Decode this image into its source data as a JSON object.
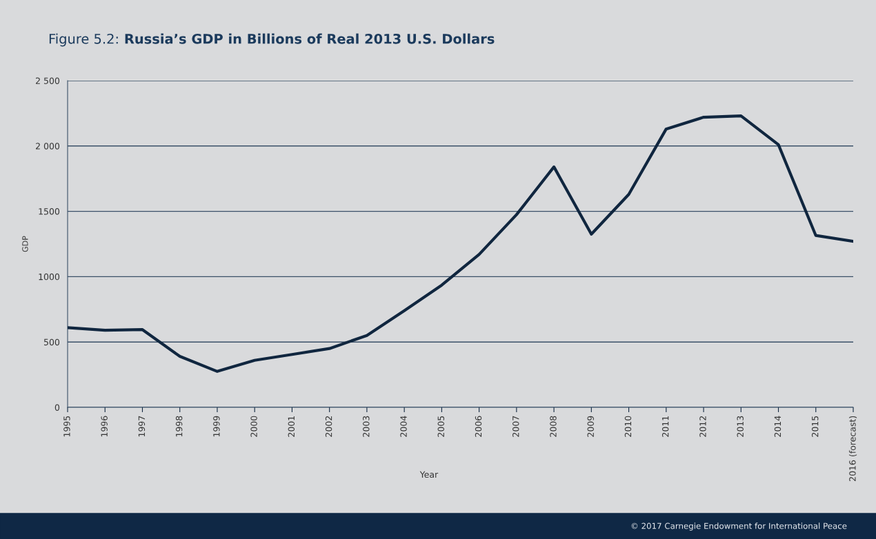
{
  "chart_data": {
    "type": "line",
    "title": "Figure 5.2: Russia’s GDP in Billions of Real 2013 U.S. Dollars",
    "xlabel": "Year",
    "ylabel": "GDP",
    "categories": [
      "1995",
      "1996",
      "1997",
      "1998",
      "1999",
      "2000",
      "2001",
      "2002",
      "2003",
      "2004",
      "2005",
      "2006",
      "2007",
      "2008",
      "2009",
      "2010",
      "2011",
      "2012",
      "2013",
      "2014",
      "2015",
      "2016 (forecast)"
    ],
    "series": [
      {
        "color": "#10263f",
        "values": [
          610,
          590,
          595,
          390,
          275,
          360,
          405,
          450,
          550,
          740,
          935,
          1170,
          1475,
          1840,
          1325,
          1630,
          2130,
          2220,
          2230,
          2010,
          1315,
          1270
        ]
      }
    ],
    "ylim": [
      0,
      2500
    ],
    "yticks": [
      0,
      500,
      1000,
      1500,
      {
        "value": 2000,
        "label": "2 000"
      },
      {
        "value": 2500,
        "label": "2 500"
      }
    ],
    "grid": "y",
    "legend": false,
    "marker": "none",
    "line_style": "solid",
    "annotations": [
      "© 2017 Carnegie Endowment for International Peace"
    ]
  }
}
